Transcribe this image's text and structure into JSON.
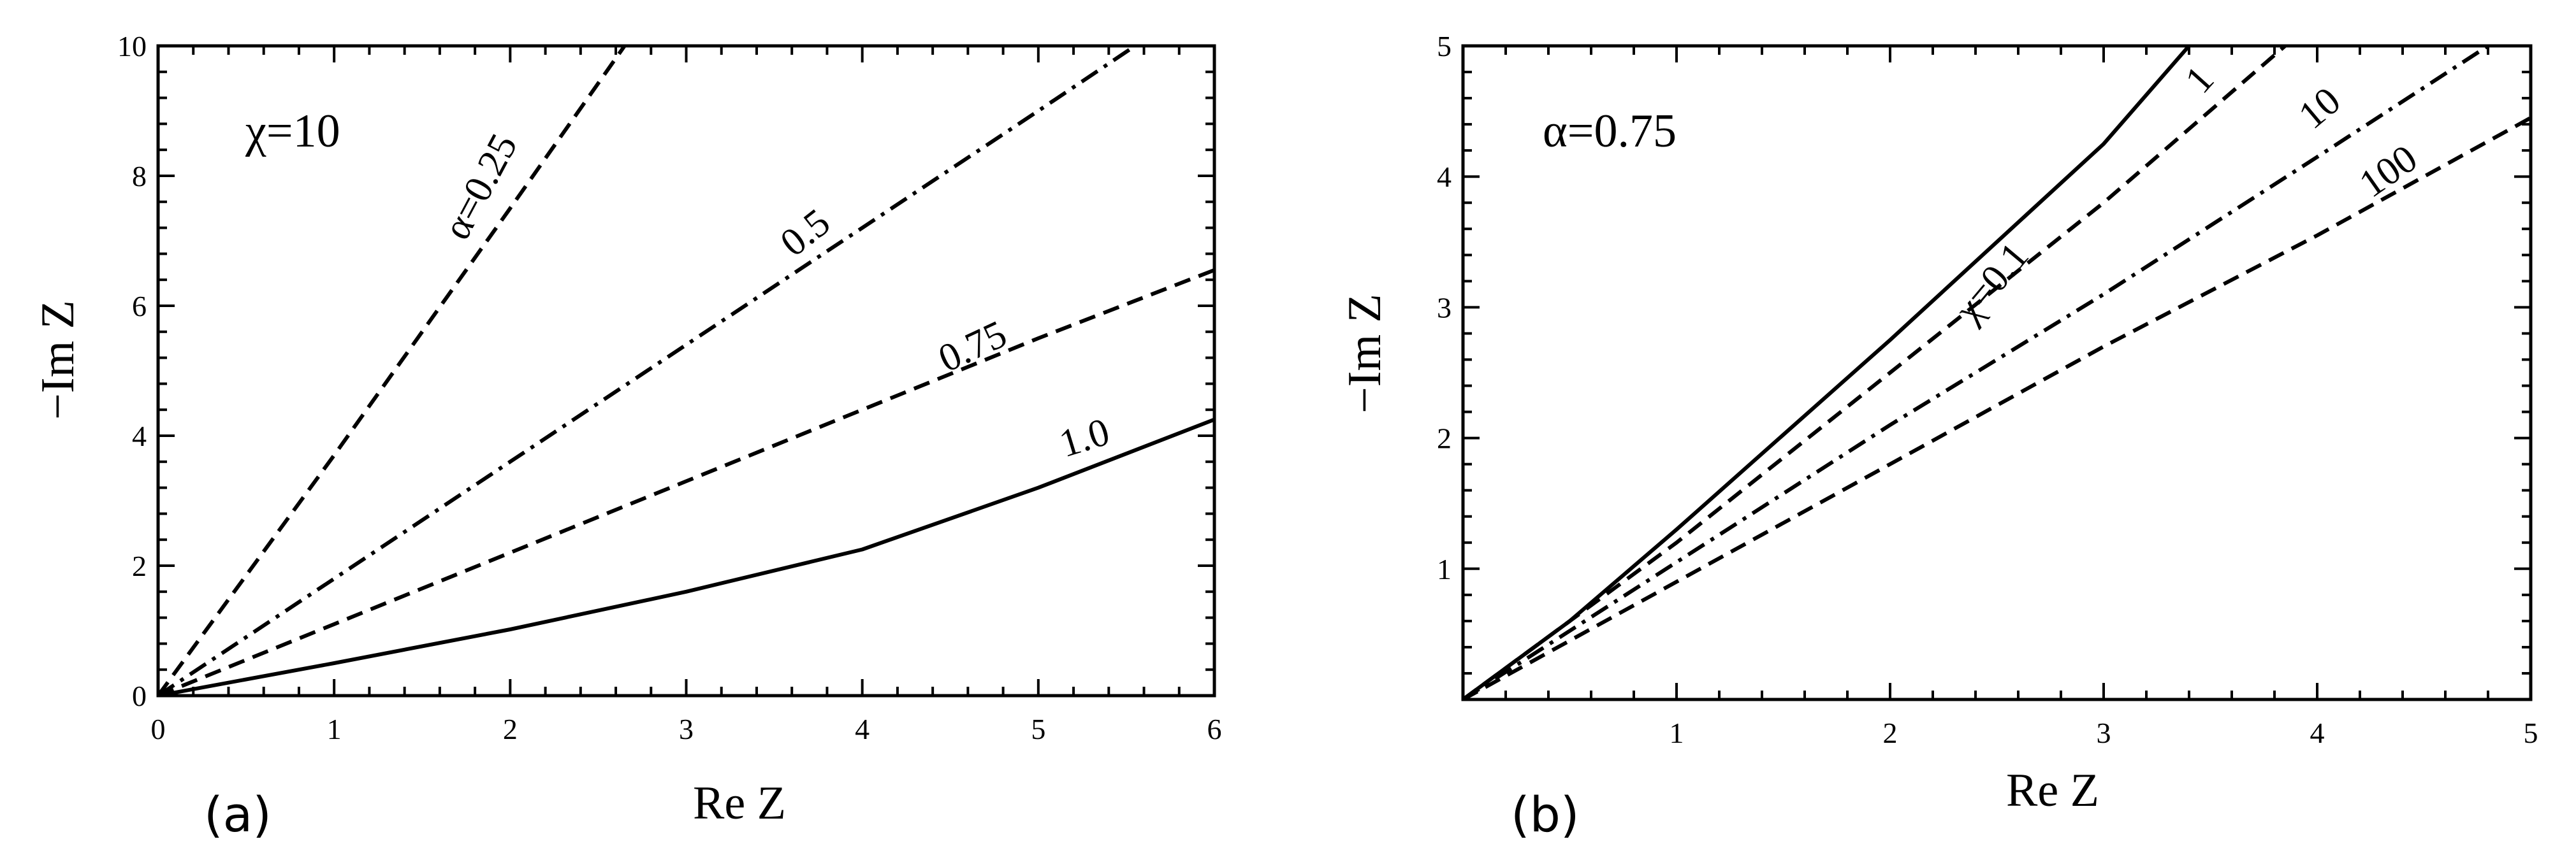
{
  "chart_data": [
    {
      "panel": "(a)",
      "type": "line",
      "xlabel": "Re Z",
      "ylabel": "−Im Z",
      "xlim": [
        0,
        6
      ],
      "ylim": [
        0,
        10
      ],
      "xticks": [
        "0",
        "1",
        "2",
        "3",
        "4",
        "5",
        "6"
      ],
      "yticks": [
        "0",
        "2",
        "4",
        "6",
        "8",
        "10"
      ],
      "annotation": "χ=10",
      "grid": false,
      "series": [
        {
          "label": "α=0.25",
          "style": "dashed",
          "x": [
            0,
            0.5,
            1.0,
            1.5,
            2.0,
            2.65
          ],
          "y": [
            0,
            1.85,
            3.7,
            5.6,
            7.5,
            10.0
          ]
        },
        {
          "label": "0.5",
          "style": "dashdot",
          "x": [
            0,
            1,
            2,
            3,
            4,
            5,
            5.55
          ],
          "y": [
            0,
            1.8,
            3.6,
            5.4,
            7.2,
            9.0,
            10.0
          ]
        },
        {
          "label": "0.75",
          "style": "dashed",
          "x": [
            0,
            1,
            2,
            3,
            4,
            5,
            6
          ],
          "y": [
            0,
            1.1,
            2.2,
            3.3,
            4.4,
            5.5,
            6.55
          ]
        },
        {
          "label": "1.0",
          "style": "solid",
          "x": [
            0,
            1,
            2,
            3,
            4,
            5,
            6
          ],
          "y": [
            0,
            0.5,
            1.02,
            1.6,
            2.25,
            3.2,
            4.25
          ]
        }
      ]
    },
    {
      "panel": "(b)",
      "type": "line",
      "xlabel": "Re Z",
      "ylabel": "−Im Z",
      "xlim": [
        0,
        5
      ],
      "ylim": [
        0,
        5
      ],
      "xticks": [
        "1",
        "2",
        "3",
        "4",
        "5"
      ],
      "yticks": [
        "1",
        "2",
        "3",
        "4",
        "5"
      ],
      "annotation": "α=0.75",
      "grid": false,
      "series": [
        {
          "label": "χ=0.1",
          "style": "solid",
          "x": [
            0,
            0.5,
            1,
            2,
            3,
            3.4
          ],
          "y": [
            0,
            0.6,
            1.3,
            2.75,
            4.25,
            5.0
          ]
        },
        {
          "label": "1",
          "style": "dashed",
          "x": [
            0,
            1,
            2,
            3,
            3.85
          ],
          "y": [
            0,
            1.2,
            2.5,
            3.8,
            5.0
          ]
        },
        {
          "label": "10",
          "style": "dashdot",
          "x": [
            0,
            1,
            2,
            3,
            4,
            4.8
          ],
          "y": [
            0,
            1.05,
            2.1,
            3.1,
            4.15,
            5.0
          ]
        },
        {
          "label": "100",
          "style": "dashed",
          "x": [
            0,
            1,
            2,
            3,
            4,
            5
          ],
          "y": [
            0,
            0.9,
            1.8,
            2.7,
            3.55,
            4.45
          ]
        }
      ]
    }
  ]
}
